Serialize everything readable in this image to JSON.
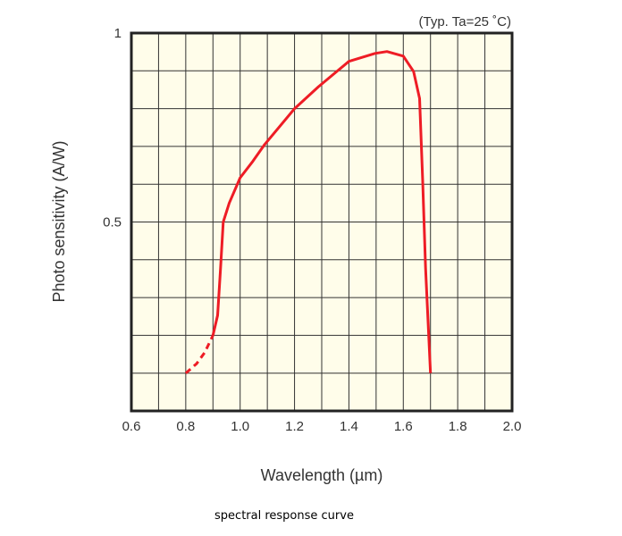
{
  "chart_data": {
    "type": "line",
    "title": "",
    "annotation": "(Typ. Ta=25 ˚C)",
    "xlabel": "Wavelength (µm)",
    "ylabel": "Photo sensitivity (A/W)",
    "xlim": [
      0.6,
      2.0
    ],
    "ylim": [
      0,
      1
    ],
    "xticks": [
      "0.6",
      "0.8",
      "1.0",
      "1.2",
      "1.4",
      "1.6",
      "1.8",
      "2.0"
    ],
    "yticks": [
      {
        "value": 1,
        "label": "1"
      },
      {
        "value": 0.5,
        "label": "0.5"
      }
    ],
    "grid": true,
    "x_grid_step": 0.1,
    "y_grid_step": 0.1,
    "plot_background": "#fffdea",
    "line_color": "#ee1c25",
    "series": [
      {
        "style": "dashed",
        "x": [
          0.8,
          0.84,
          0.87,
          0.9
        ],
        "y": [
          0.1,
          0.125,
          0.155,
          0.2
        ]
      },
      {
        "style": "solid",
        "x": [
          0.9,
          0.917,
          0.928,
          0.938,
          0.96,
          1.0,
          1.047,
          1.09,
          1.2,
          1.288,
          1.4,
          1.496,
          1.54,
          1.6,
          1.638,
          1.66,
          1.671,
          1.682,
          1.7
        ],
        "y": [
          0.2,
          0.253,
          0.378,
          0.5,
          0.55,
          0.617,
          0.661,
          0.705,
          0.8,
          0.858,
          0.925,
          0.946,
          0.951,
          0.939,
          0.898,
          0.827,
          0.614,
          0.378,
          0.1
        ]
      }
    ]
  },
  "caption": "spectral response curve"
}
